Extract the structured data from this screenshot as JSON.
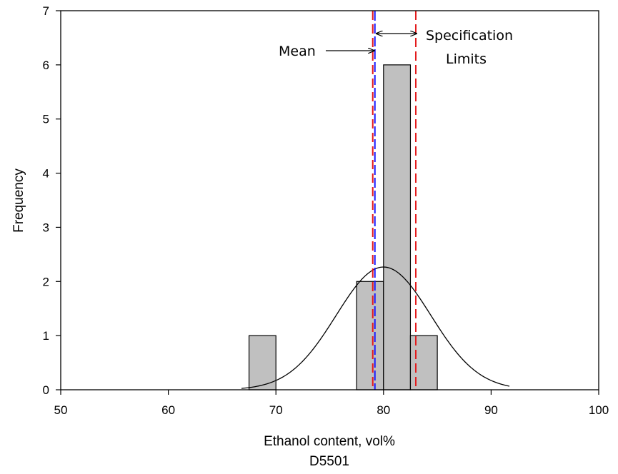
{
  "chart_data": {
    "type": "bar",
    "bins": [
      {
        "x0": 67.5,
        "x1": 70.0,
        "count": 1
      },
      {
        "x0": 77.5,
        "x1": 80.0,
        "count": 2
      },
      {
        "x0": 80.0,
        "x1": 82.5,
        "count": 6
      },
      {
        "x0": 82.5,
        "x1": 85.0,
        "count": 1
      }
    ],
    "normal_curve": {
      "mean": 80.0,
      "sd": 4.4,
      "scale": 25,
      "x_range": [
        66.8,
        91.7
      ]
    },
    "mean_line": {
      "x": 79.2,
      "color": "#1a1aff"
    },
    "spec_limits": {
      "lower": 79.0,
      "upper": 83.0,
      "color": "#e31a1c"
    },
    "xlim": [
      50,
      100
    ],
    "ylim": [
      0,
      7
    ],
    "x_ticks": [
      50,
      60,
      70,
      80,
      90,
      100
    ],
    "y_ticks": [
      0,
      1,
      2,
      3,
      4,
      5,
      6,
      7
    ],
    "x_tick_labels": [
      "50",
      "60",
      "70",
      "80",
      "90",
      "100"
    ],
    "y_tick_labels": [
      "0",
      "1",
      "2",
      "3",
      "4",
      "5",
      "6",
      "7"
    ],
    "xlabel": "Ethanol content, vol%",
    "xlabel2": "D5501",
    "ylabel": "Frequency",
    "annotations": {
      "mean_label": "Mean",
      "spec_label_line1": "Specification",
      "spec_label_line2": "Limits"
    },
    "bar_color": "#c0c0c0",
    "grid": false
  }
}
